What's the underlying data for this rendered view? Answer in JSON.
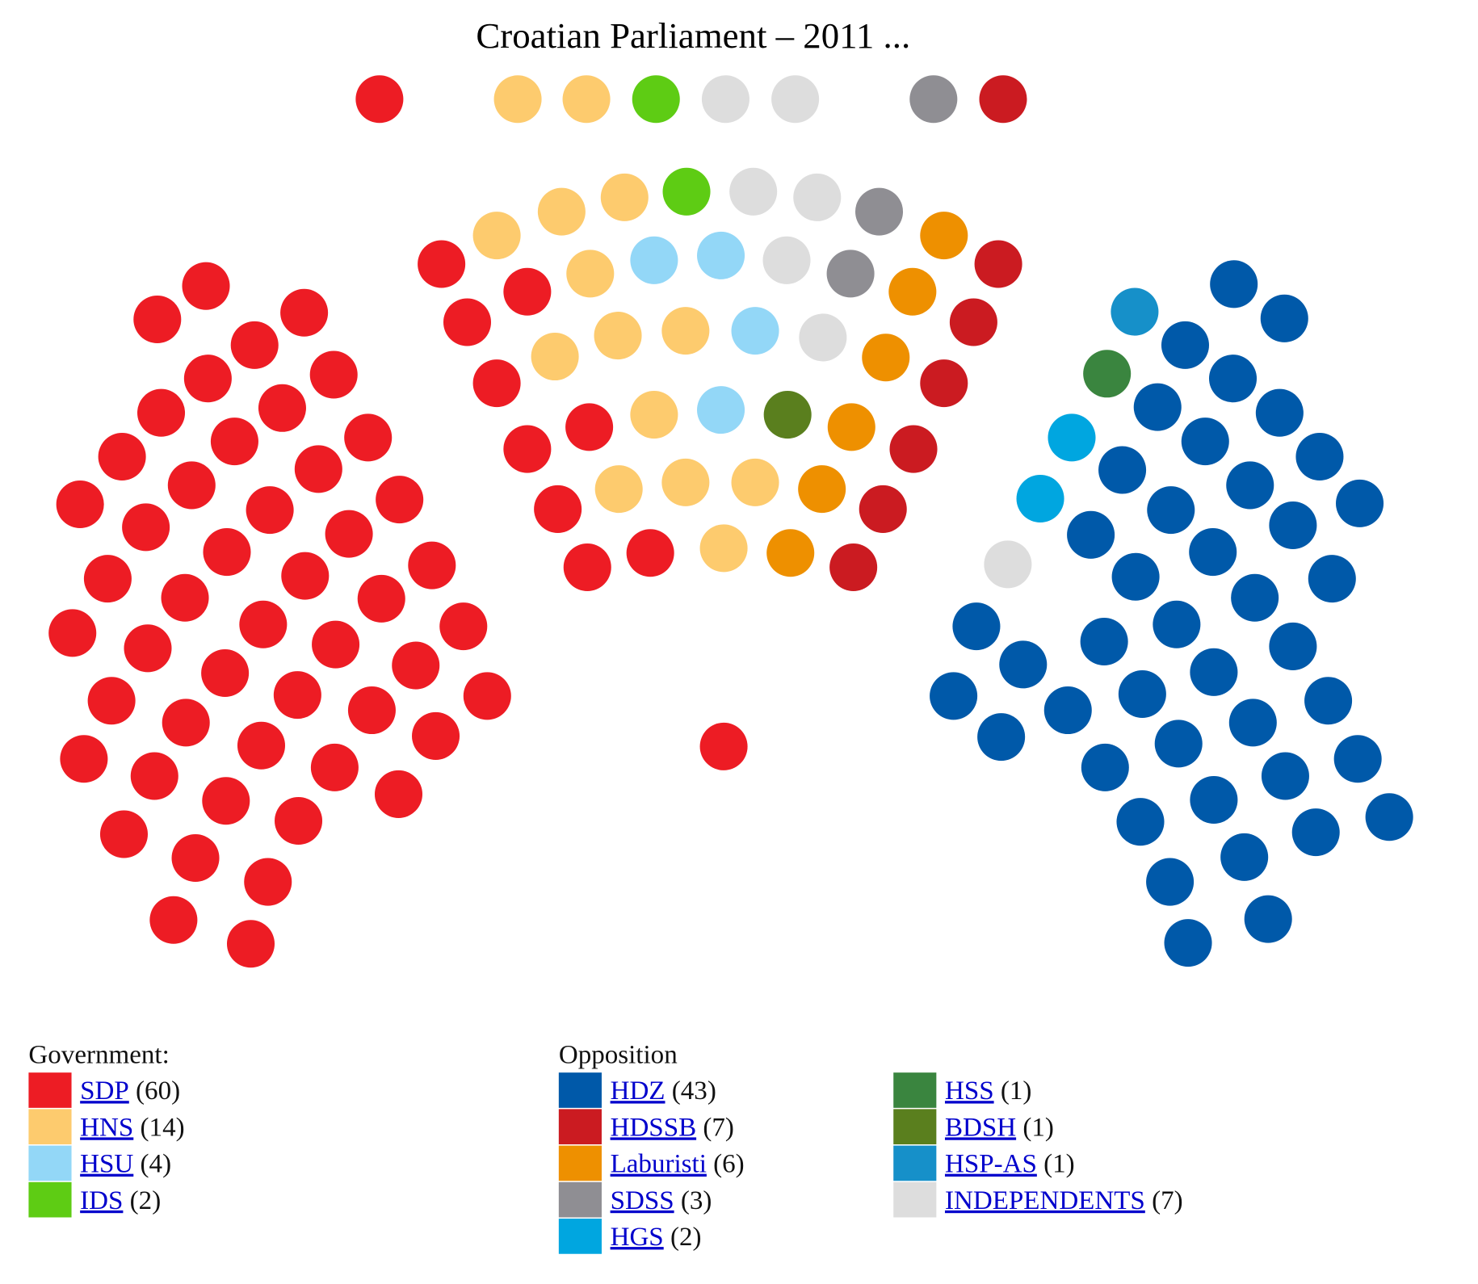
{
  "title": "Croatian Parliament – 2011 ...",
  "legend": {
    "groups": [
      {
        "heading": "Government:",
        "entries": [
          {
            "name": "SDP",
            "count": "(60)",
            "color": "#ed1c24"
          },
          {
            "name": "HNS",
            "count": "(14)",
            "color": "#fdcb6e"
          },
          {
            "name": "HSU",
            "count": "(4)",
            "color": "#93d7f7"
          },
          {
            "name": "IDS",
            "count": "(2)",
            "color": "#5ecc14"
          }
        ]
      },
      {
        "heading": "Opposition",
        "entries": [
          {
            "name": "HDZ",
            "count": "(43)",
            "color": "#0059a9"
          },
          {
            "name": "HDSSB",
            "count": "(7)",
            "color": "#cb1b21"
          },
          {
            "name": "Laburisti",
            "count": "(6)",
            "color": "#ee9000"
          },
          {
            "name": "SDSS",
            "count": "(3)",
            "color": "#8f8e93"
          },
          {
            "name": "HGS",
            "count": "(2)",
            "color": "#00a6e0"
          }
        ]
      },
      {
        "entries": [
          {
            "name": "HSS",
            "count": "(1)",
            "color": "#3a853f"
          },
          {
            "name": "BDSH",
            "count": "(1)",
            "color": "#5a7f1e"
          },
          {
            "name": "HSP-AS",
            "count": "(1)",
            "color": "#1690c9"
          },
          {
            "name": "INDEPENDENTS",
            "count": "(7)",
            "color": "#dddddd"
          }
        ]
      }
    ]
  }
}
